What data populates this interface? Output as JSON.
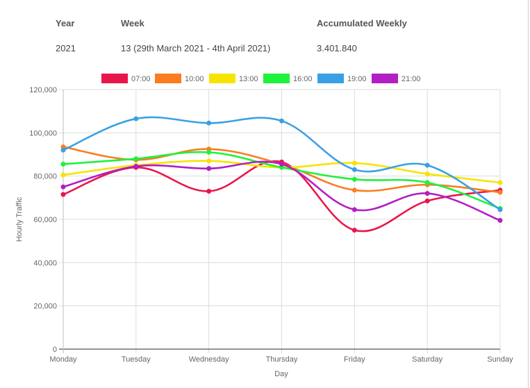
{
  "info": {
    "year_label": "Year",
    "week_label": "Week",
    "accum_label": "Accumulated Weekly",
    "year_value": "2021",
    "week_value": "13 (29th March 2021 - 4th April 2021)",
    "accum_value": "3.401.840"
  },
  "chart_data": {
    "type": "line",
    "categories": [
      "Monday",
      "Tuesday",
      "Wednesday",
      "Thursday",
      "Friday",
      "Saturday",
      "Sunday"
    ],
    "xlabel": "Day",
    "ylabel": "Hourly Traffic",
    "ylim": [
      0,
      120000
    ],
    "yticks": [
      0,
      20000,
      40000,
      60000,
      80000,
      100000,
      120000
    ],
    "ytick_labels": [
      "0",
      "20,000",
      "40,000",
      "60,000",
      "80,000",
      "100,000",
      "120,000"
    ],
    "grid": true,
    "legend_position": "top",
    "series": [
      {
        "name": "07:00",
        "color": "#e8174a",
        "values": [
          71500,
          84000,
          73000,
          86500,
          55000,
          68500,
          73500
        ]
      },
      {
        "name": "10:00",
        "color": "#fb7c21",
        "values": [
          93500,
          87500,
          92500,
          85500,
          73500,
          76000,
          72500
        ]
      },
      {
        "name": "13:00",
        "color": "#f6e400",
        "values": [
          80500,
          85000,
          87000,
          84000,
          86000,
          81000,
          77000
        ]
      },
      {
        "name": "16:00",
        "color": "#1df33a",
        "values": [
          85500,
          88000,
          91000,
          84000,
          78500,
          77000,
          65000
        ]
      },
      {
        "name": "19:00",
        "color": "#3aa0e4",
        "values": [
          92000,
          106500,
          104500,
          105500,
          83000,
          85000,
          64500
        ]
      },
      {
        "name": "21:00",
        "color": "#b31fc4",
        "values": [
          75000,
          84500,
          83500,
          85500,
          64500,
          72000,
          59500
        ]
      }
    ]
  }
}
